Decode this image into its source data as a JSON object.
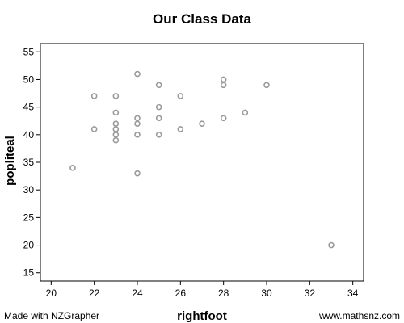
{
  "chart_data": {
    "type": "scatter",
    "title": "Our Class Data",
    "xlabel": "rightfoot",
    "ylabel": "popliteal",
    "xlim": [
      19.5,
      34.5
    ],
    "ylim": [
      13.5,
      56.5
    ],
    "x_ticks": [
      20,
      22,
      24,
      26,
      28,
      30,
      32,
      34
    ],
    "y_ticks": [
      15,
      20,
      25,
      30,
      35,
      40,
      45,
      50,
      55
    ],
    "grid": false,
    "marker_color": "#9a9a9a",
    "points": [
      {
        "x": 21,
        "y": 34
      },
      {
        "x": 22,
        "y": 47
      },
      {
        "x": 22,
        "y": 41
      },
      {
        "x": 23,
        "y": 47
      },
      {
        "x": 23,
        "y": 44
      },
      {
        "x": 23,
        "y": 42
      },
      {
        "x": 23,
        "y": 41
      },
      {
        "x": 23,
        "y": 40
      },
      {
        "x": 23,
        "y": 39
      },
      {
        "x": 24,
        "y": 51
      },
      {
        "x": 24,
        "y": 43
      },
      {
        "x": 24,
        "y": 42
      },
      {
        "x": 24,
        "y": 40
      },
      {
        "x": 24,
        "y": 33
      },
      {
        "x": 25,
        "y": 49
      },
      {
        "x": 25,
        "y": 45
      },
      {
        "x": 25,
        "y": 43
      },
      {
        "x": 25,
        "y": 40
      },
      {
        "x": 26,
        "y": 47
      },
      {
        "x": 26,
        "y": 41
      },
      {
        "x": 27,
        "y": 42
      },
      {
        "x": 28,
        "y": 50
      },
      {
        "x": 28,
        "y": 49
      },
      {
        "x": 28,
        "y": 43
      },
      {
        "x": 29,
        "y": 44
      },
      {
        "x": 30,
        "y": 49
      },
      {
        "x": 33,
        "y": 20
      }
    ]
  },
  "footer": {
    "left": "Made with NZGrapher",
    "right": "www.mathsnz.com"
  }
}
